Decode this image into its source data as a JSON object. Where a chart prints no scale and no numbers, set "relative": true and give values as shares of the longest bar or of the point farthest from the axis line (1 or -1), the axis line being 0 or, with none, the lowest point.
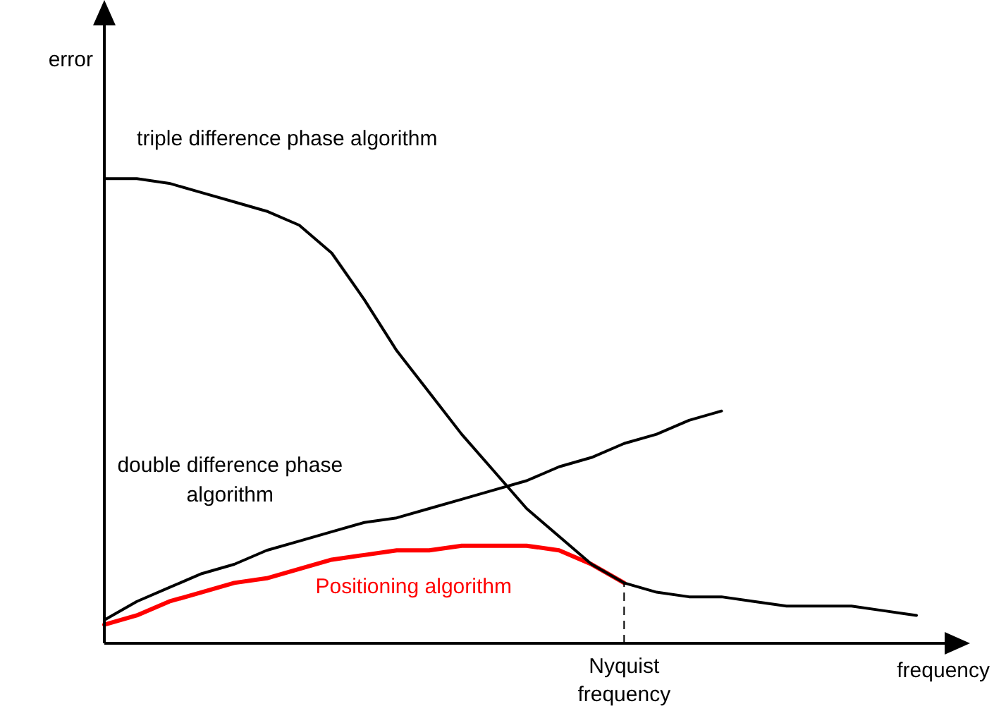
{
  "chart_data": {
    "type": "line",
    "relative": true,
    "xlabel": "frequency",
    "annotations": [
      "error",
      "Nyquist frequency"
    ],
    "legend": false,
    "marker": "none",
    "line_style": "solid",
    "categories": [
      null,
      null,
      null,
      null,
      null,
      null,
      null,
      null,
      null,
      null,
      null,
      null,
      null,
      null,
      null,
      null,
      null,
      null,
      null,
      null,
      null,
      null,
      null,
      null,
      null,
      null
    ],
    "series": [
      {
        "name": "triple difference phase algorithm",
        "color": "#000000",
        "values": [
          1.0,
          1.0,
          0.99,
          0.97,
          0.95,
          0.93,
          0.9,
          0.84,
          0.74,
          0.63,
          0.54,
          0.45,
          0.37,
          0.29,
          0.23,
          0.17,
          0.13,
          0.11,
          0.1,
          0.1,
          0.09,
          0.08,
          0.08,
          0.08,
          0.07,
          0.06
        ]
      },
      {
        "name": "double difference phase algorithm",
        "color": "#000000",
        "values": [
          0.05,
          0.09,
          0.12,
          0.15,
          0.17,
          0.2,
          0.22,
          0.24,
          0.26,
          0.27,
          0.29,
          0.31,
          0.33,
          0.35,
          0.38,
          0.4,
          0.43,
          0.45,
          0.48,
          0.5,
          null,
          null,
          null,
          null,
          null,
          null
        ]
      },
      {
        "name": "Positioning algorithm",
        "color": "#ff0000",
        "values": [
          0.04,
          0.06,
          0.09,
          0.11,
          0.13,
          0.14,
          0.16,
          0.18,
          0.19,
          0.2,
          0.2,
          0.21,
          0.21,
          0.21,
          0.2,
          0.17,
          0.13,
          null,
          null,
          null,
          null,
          null,
          null,
          null,
          null,
          null
        ]
      }
    ]
  }
}
